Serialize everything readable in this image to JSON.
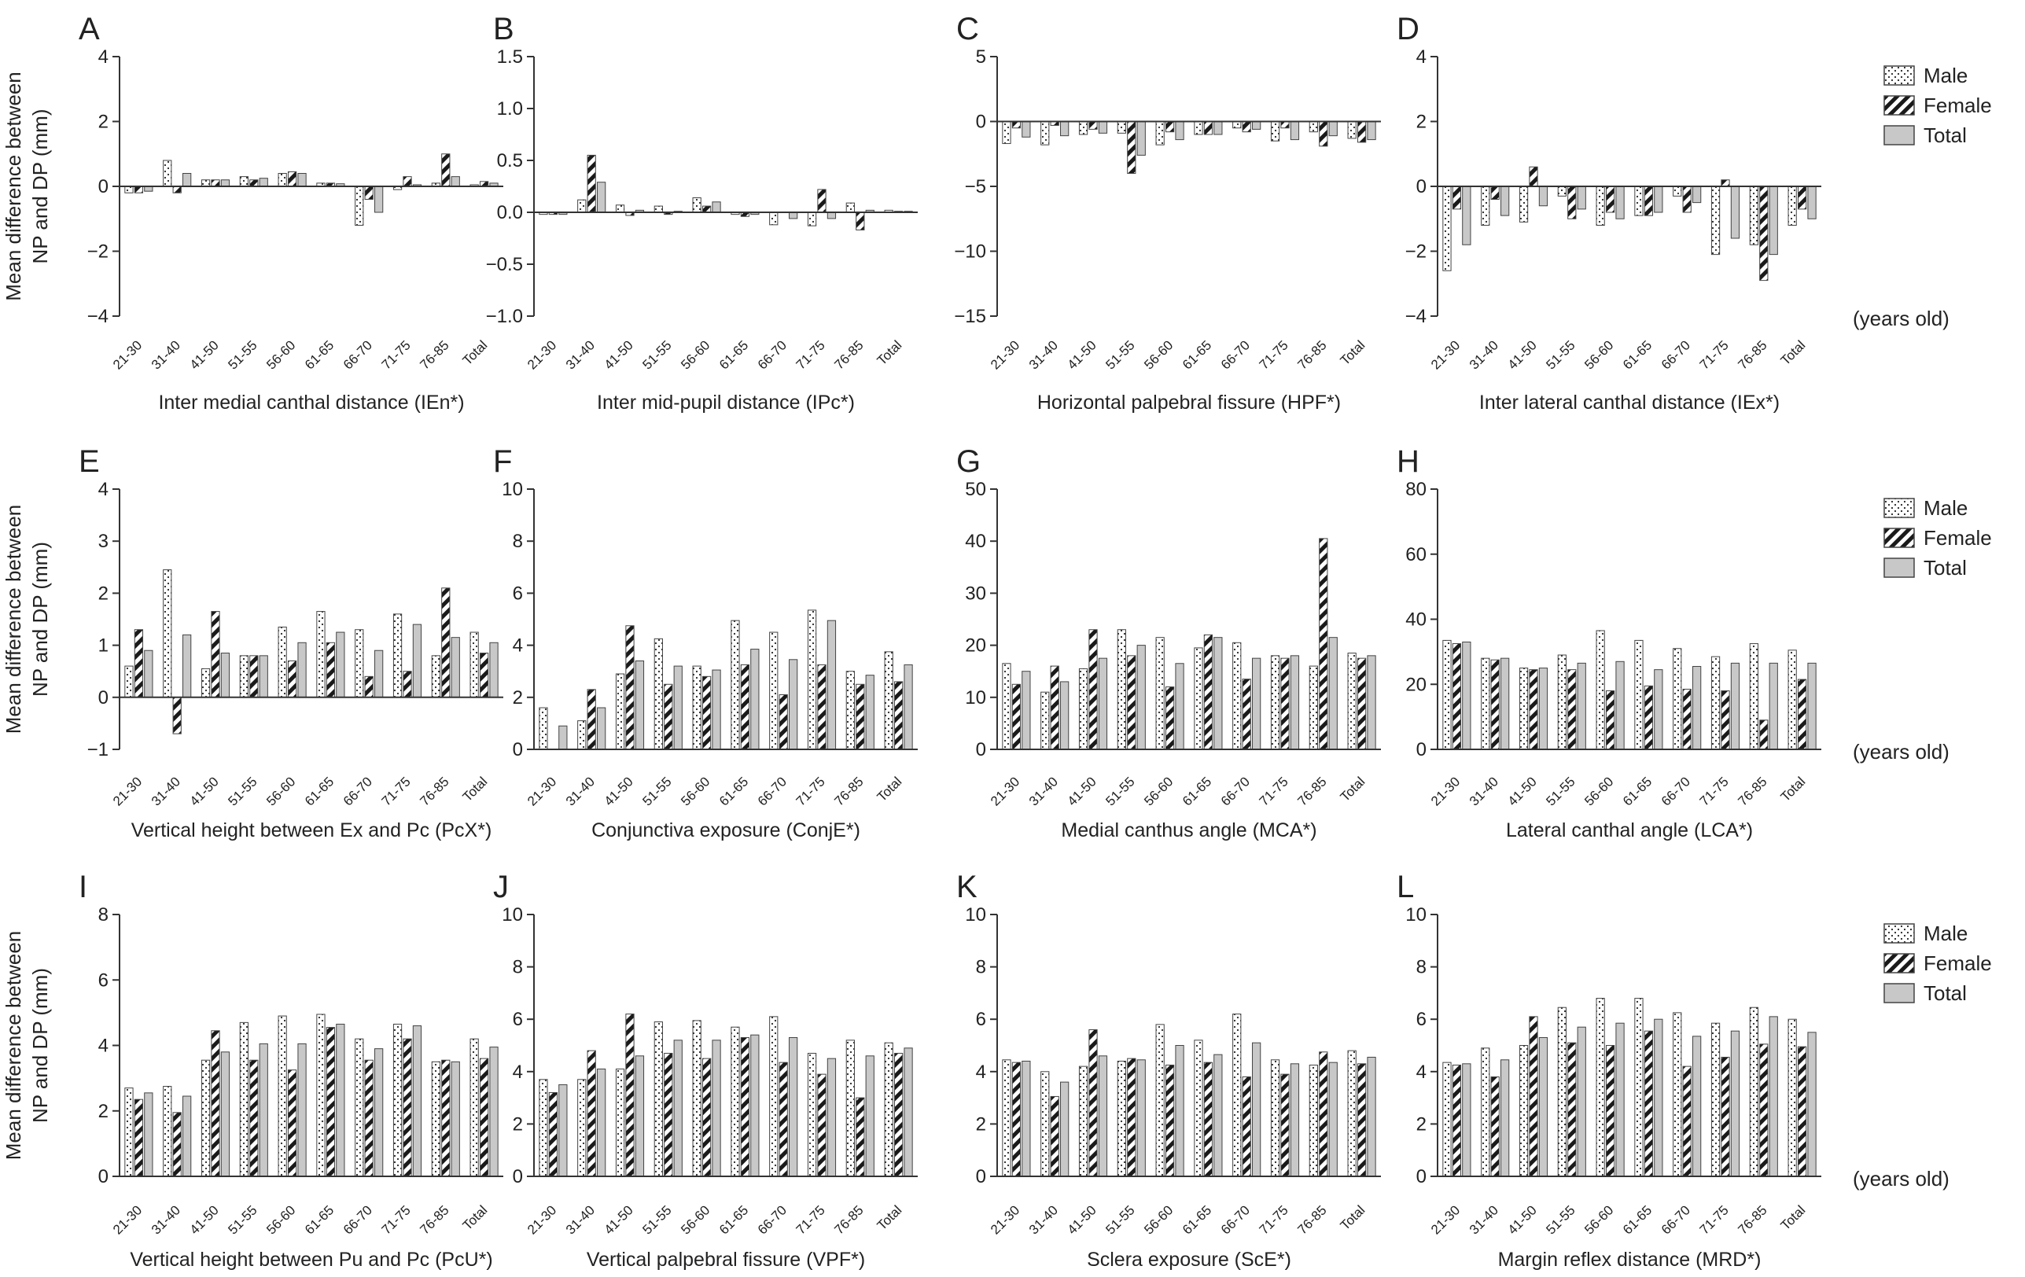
{
  "figure": {
    "ylabel_line1": "Mean difference between",
    "ylabel_line2": "NP and DP (mm)",
    "units_label": "(years old)",
    "legend": [
      "Male",
      "Female",
      "Total"
    ]
  },
  "chart_data": [
    {
      "type": "bar",
      "letter": "A",
      "xlabel": "Inter medial canthal distance (IEn*)",
      "ylim": [
        -4,
        4
      ],
      "yticks": [
        -4,
        -2,
        0,
        2,
        4
      ],
      "tick_decimals": 0,
      "categories": [
        "21-30",
        "31-40",
        "41-50",
        "51-55",
        "56-60",
        "61-65",
        "66-70",
        "71-75",
        "76-85",
        "Total"
      ],
      "series": [
        {
          "name": "Male",
          "values": [
            -0.2,
            0.8,
            0.2,
            0.3,
            0.4,
            0.1,
            -1.2,
            -0.1,
            0.1,
            0.05
          ]
        },
        {
          "name": "Female",
          "values": [
            -0.2,
            -0.2,
            0.2,
            0.2,
            0.45,
            0.1,
            -0.4,
            0.3,
            1.0,
            0.15
          ]
        },
        {
          "name": "Total",
          "values": [
            -0.15,
            0.4,
            0.2,
            0.25,
            0.4,
            0.08,
            -0.8,
            0.05,
            0.3,
            0.1
          ]
        }
      ]
    },
    {
      "type": "bar",
      "letter": "B",
      "xlabel": "Inter mid-pupil distance (IPc*)",
      "ylim": [
        -1,
        1.5
      ],
      "yticks": [
        -1,
        -0.5,
        0,
        0.5,
        1,
        1.5
      ],
      "tick_decimals": 1,
      "categories": [
        "21-30",
        "31-40",
        "41-50",
        "51-55",
        "56-60",
        "61-65",
        "66-70",
        "71-75",
        "76-85",
        "Total"
      ],
      "series": [
        {
          "name": "Male",
          "values": [
            -0.02,
            0.12,
            0.07,
            0.06,
            0.14,
            -0.02,
            -0.12,
            -0.13,
            0.09,
            0.02
          ]
        },
        {
          "name": "Female",
          "values": [
            -0.02,
            0.55,
            -0.03,
            -0.02,
            0.06,
            -0.04,
            0.0,
            0.22,
            -0.17,
            0.01
          ]
        },
        {
          "name": "Total",
          "values": [
            -0.02,
            0.29,
            0.02,
            0.01,
            0.1,
            -0.02,
            -0.06,
            -0.06,
            0.02,
            0.01
          ]
        }
      ]
    },
    {
      "type": "bar",
      "letter": "C",
      "xlabel": "Horizontal palpebral fissure (HPF*)",
      "ylim": [
        -15,
        5
      ],
      "yticks": [
        -15,
        -10,
        -5,
        0,
        5
      ],
      "tick_decimals": 0,
      "categories": [
        "21-30",
        "31-40",
        "41-50",
        "51-55",
        "56-60",
        "61-65",
        "66-70",
        "71-75",
        "76-85",
        "Total"
      ],
      "series": [
        {
          "name": "Male",
          "values": [
            -1.7,
            -1.8,
            -1.0,
            -0.9,
            -1.8,
            -1.0,
            -0.5,
            -1.5,
            -0.8,
            -1.3
          ]
        },
        {
          "name": "Female",
          "values": [
            -0.5,
            -0.3,
            -0.6,
            -4.0,
            -0.8,
            -1.0,
            -0.8,
            -0.5,
            -1.9,
            -1.6
          ]
        },
        {
          "name": "Total",
          "values": [
            -1.2,
            -1.1,
            -0.9,
            -2.6,
            -1.4,
            -1.0,
            -0.6,
            -1.4,
            -1.1,
            -1.4
          ]
        }
      ]
    },
    {
      "type": "bar",
      "letter": "D",
      "xlabel": "Inter lateral canthal distance (IEx*)",
      "ylim": [
        -4,
        4
      ],
      "yticks": [
        -4,
        -2,
        0,
        2,
        4
      ],
      "tick_decimals": 0,
      "legend": true,
      "units": true,
      "categories": [
        "21-30",
        "31-40",
        "41-50",
        "51-55",
        "56-60",
        "61-65",
        "66-70",
        "71-75",
        "76-85",
        "Total"
      ],
      "series": [
        {
          "name": "Male",
          "values": [
            -2.6,
            -1.2,
            -1.1,
            -0.3,
            -1.2,
            -0.9,
            -0.3,
            -2.1,
            -1.8,
            -1.2
          ]
        },
        {
          "name": "Female",
          "values": [
            -0.7,
            -0.4,
            0.6,
            -1.0,
            -0.8,
            -0.9,
            -0.8,
            0.2,
            -2.9,
            -0.7
          ]
        },
        {
          "name": "Total",
          "values": [
            -1.8,
            -0.9,
            -0.6,
            -0.7,
            -1.0,
            -0.8,
            -0.5,
            -1.6,
            -2.1,
            -1.0
          ]
        }
      ]
    },
    {
      "type": "bar",
      "letter": "E",
      "xlabel": "Vertical height between Ex and Pc (PcX*)",
      "ylim": [
        -1,
        4
      ],
      "yticks": [
        -1,
        0,
        1,
        2,
        3,
        4
      ],
      "tick_decimals": 0,
      "categories": [
        "21-30",
        "31-40",
        "41-50",
        "51-55",
        "56-60",
        "61-65",
        "66-70",
        "71-75",
        "76-85",
        "Total"
      ],
      "series": [
        {
          "name": "Male",
          "values": [
            0.6,
            2.45,
            0.55,
            0.8,
            1.35,
            1.65,
            1.3,
            1.6,
            0.8,
            1.25
          ]
        },
        {
          "name": "Female",
          "values": [
            1.3,
            -0.7,
            1.65,
            0.8,
            0.7,
            1.05,
            0.4,
            0.5,
            2.1,
            0.85
          ]
        },
        {
          "name": "Total",
          "values": [
            0.9,
            1.2,
            0.85,
            0.8,
            1.05,
            1.25,
            0.9,
            1.4,
            1.15,
            1.05
          ]
        }
      ]
    },
    {
      "type": "bar",
      "letter": "F",
      "xlabel": "Conjunctiva exposure (ConjE*)",
      "ylim": [
        0,
        10
      ],
      "yticks": [
        0,
        2,
        4,
        6,
        8,
        10
      ],
      "tick_decimals": 0,
      "categories": [
        "21-30",
        "31-40",
        "41-50",
        "51-55",
        "56-60",
        "61-65",
        "66-70",
        "71-75",
        "76-85",
        "Total"
      ],
      "series": [
        {
          "name": "Male",
          "values": [
            1.6,
            1.1,
            2.9,
            4.25,
            3.2,
            4.95,
            4.5,
            5.35,
            3.0,
            3.75
          ]
        },
        {
          "name": "Female",
          "values": [
            0.0,
            2.3,
            4.75,
            2.5,
            2.8,
            3.25,
            2.1,
            3.25,
            2.5,
            2.6
          ]
        },
        {
          "name": "Total",
          "values": [
            0.9,
            1.6,
            3.4,
            3.2,
            3.05,
            3.85,
            3.45,
            4.95,
            2.85,
            3.25
          ]
        }
      ]
    },
    {
      "type": "bar",
      "letter": "G",
      "xlabel": "Medial canthus angle (MCA*)",
      "ylim": [
        0,
        50
      ],
      "yticks": [
        0,
        10,
        20,
        30,
        40,
        50
      ],
      "tick_decimals": 0,
      "categories": [
        "21-30",
        "31-40",
        "41-50",
        "51-55",
        "56-60",
        "61-65",
        "66-70",
        "71-75",
        "76-85",
        "Total"
      ],
      "series": [
        {
          "name": "Male",
          "values": [
            16.5,
            11,
            15.5,
            23,
            21.5,
            19.5,
            20.5,
            18,
            16,
            18.5
          ]
        },
        {
          "name": "Female",
          "values": [
            12.5,
            16,
            23,
            18,
            12,
            22,
            13.5,
            17.5,
            40.5,
            17.5
          ]
        },
        {
          "name": "Total",
          "values": [
            15,
            13,
            17.5,
            20,
            16.5,
            21.5,
            17.5,
            18,
            21.5,
            18
          ]
        }
      ]
    },
    {
      "type": "bar",
      "letter": "H",
      "xlabel": "Lateral canthal angle (LCA*)",
      "ylim": [
        0,
        80
      ],
      "yticks": [
        0,
        20,
        40,
        60,
        80
      ],
      "tick_decimals": 0,
      "legend": true,
      "units": true,
      "categories": [
        "21-30",
        "31-40",
        "41-50",
        "51-55",
        "56-60",
        "61-65",
        "66-70",
        "71-75",
        "76-85",
        "Total"
      ],
      "series": [
        {
          "name": "Male",
          "values": [
            33.5,
            28,
            25,
            29,
            36.5,
            33.5,
            31,
            28.5,
            32.5,
            30.5
          ]
        },
        {
          "name": "Female",
          "values": [
            32.5,
            27.5,
            24.5,
            24.5,
            18,
            19.5,
            18.5,
            18,
            9,
            21.5
          ]
        },
        {
          "name": "Total",
          "values": [
            33,
            28,
            25,
            26.5,
            27,
            24.5,
            25.5,
            26.5,
            26.5,
            26.5
          ]
        }
      ]
    },
    {
      "type": "bar",
      "letter": "I",
      "xlabel": "Vertical height between Pu and Pc (PcU*)",
      "ylim": [
        0,
        8
      ],
      "yticks": [
        0,
        2,
        4,
        6,
        8
      ],
      "tick_decimals": 0,
      "categories": [
        "21-30",
        "31-40",
        "41-50",
        "51-55",
        "56-60",
        "61-65",
        "66-70",
        "71-75",
        "76-85",
        "Total"
      ],
      "series": [
        {
          "name": "Male",
          "values": [
            2.7,
            2.75,
            3.55,
            4.7,
            4.9,
            4.95,
            4.2,
            4.65,
            3.5,
            4.2
          ]
        },
        {
          "name": "Female",
          "values": [
            2.35,
            1.95,
            4.45,
            3.55,
            3.25,
            4.55,
            3.55,
            4.2,
            3.55,
            3.6
          ]
        },
        {
          "name": "Total",
          "values": [
            2.55,
            2.45,
            3.8,
            4.05,
            4.05,
            4.65,
            3.9,
            4.6,
            3.5,
            3.95
          ]
        }
      ]
    },
    {
      "type": "bar",
      "letter": "J",
      "xlabel": "Vertical palpebral fissure (VPF*)",
      "ylim": [
        0,
        10
      ],
      "yticks": [
        0,
        2,
        4,
        6,
        8,
        10
      ],
      "tick_decimals": 0,
      "categories": [
        "21-30",
        "31-40",
        "41-50",
        "51-55",
        "56-60",
        "61-65",
        "66-70",
        "71-75",
        "76-85",
        "Total"
      ],
      "series": [
        {
          "name": "Male",
          "values": [
            3.7,
            3.7,
            4.1,
            5.9,
            5.95,
            5.7,
            6.1,
            4.7,
            5.2,
            5.1
          ]
        },
        {
          "name": "Female",
          "values": [
            3.2,
            4.8,
            6.2,
            4.7,
            4.5,
            5.3,
            4.35,
            3.9,
            3.0,
            4.7
          ]
        },
        {
          "name": "Total",
          "values": [
            3.5,
            4.1,
            4.6,
            5.2,
            5.2,
            5.4,
            5.3,
            4.5,
            4.6,
            4.9
          ]
        }
      ]
    },
    {
      "type": "bar",
      "letter": "K",
      "xlabel": "Sclera exposure (ScE*)",
      "ylim": [
        0,
        10
      ],
      "yticks": [
        0,
        2,
        4,
        6,
        8,
        10
      ],
      "tick_decimals": 0,
      "categories": [
        "21-30",
        "31-40",
        "41-50",
        "51-55",
        "56-60",
        "61-65",
        "66-70",
        "71-75",
        "76-85",
        "Total"
      ],
      "series": [
        {
          "name": "Male",
          "values": [
            4.45,
            4.0,
            4.2,
            4.4,
            5.8,
            5.2,
            6.2,
            4.45,
            4.25,
            4.8
          ]
        },
        {
          "name": "Female",
          "values": [
            4.35,
            3.05,
            5.6,
            4.5,
            4.25,
            4.35,
            3.8,
            3.9,
            4.75,
            4.3
          ]
        },
        {
          "name": "Total",
          "values": [
            4.4,
            3.6,
            4.6,
            4.45,
            5.0,
            4.65,
            5.1,
            4.3,
            4.35,
            4.55
          ]
        }
      ]
    },
    {
      "type": "bar",
      "letter": "L",
      "xlabel": "Margin reflex distance (MRD*)",
      "ylim": [
        0,
        10
      ],
      "yticks": [
        0,
        2,
        4,
        6,
        8,
        10
      ],
      "tick_decimals": 0,
      "legend": true,
      "units": true,
      "categories": [
        "21-30",
        "31-40",
        "41-50",
        "51-55",
        "56-60",
        "61-65",
        "66-70",
        "71-75",
        "76-85",
        "Total"
      ],
      "series": [
        {
          "name": "Male",
          "values": [
            4.35,
            4.9,
            5.0,
            6.45,
            6.8,
            6.8,
            6.25,
            5.85,
            6.45,
            6.0
          ]
        },
        {
          "name": "Female",
          "values": [
            4.25,
            3.8,
            6.1,
            5.1,
            5.0,
            5.55,
            4.2,
            4.55,
            5.05,
            4.95
          ]
        },
        {
          "name": "Total",
          "values": [
            4.3,
            4.45,
            5.3,
            5.7,
            5.85,
            6.0,
            5.35,
            5.55,
            6.1,
            5.5
          ]
        }
      ]
    }
  ]
}
